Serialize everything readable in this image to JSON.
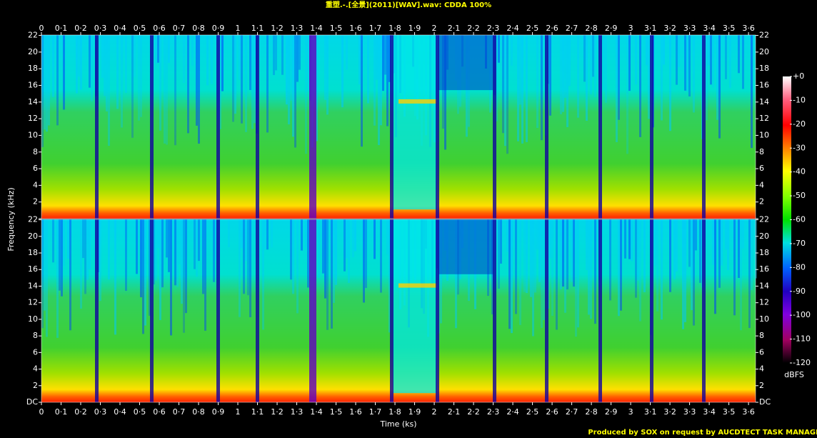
{
  "chart_data": {
    "type": "spectrogram",
    "title": "重塑.-.[全景](2011)[WAV].wav: CDDA 100%",
    "x_label": "Time (ks)",
    "y_label": "Frequency (kHz)",
    "xlim": [
      0,
      3.636
    ],
    "xticks": [
      0,
      {
        "value": 0.1,
        "label": "0·1"
      },
      {
        "value": 0.2,
        "label": "0·2"
      },
      {
        "value": 0.3,
        "label": "0·3"
      },
      {
        "value": 0.4,
        "label": "0·4"
      },
      {
        "value": 0.5,
        "label": "0·5"
      },
      {
        "value": 0.6,
        "label": "0·6"
      },
      {
        "value": 0.7,
        "label": "0·7"
      },
      {
        "value": 0.8,
        "label": "0·8"
      },
      {
        "value": 0.9,
        "label": "0·9"
      },
      1,
      {
        "value": 1.1,
        "label": "1·1"
      },
      {
        "value": 1.2,
        "label": "1·2"
      },
      {
        "value": 1.3,
        "label": "1·3"
      },
      {
        "value": 1.4,
        "label": "1·4"
      },
      {
        "value": 1.5,
        "label": "1·5"
      },
      {
        "value": 1.6,
        "label": "1·6"
      },
      {
        "value": 1.7,
        "label": "1·7"
      },
      {
        "value": 1.8,
        "label": "1·8"
      },
      {
        "value": 1.9,
        "label": "1·9"
      },
      2,
      {
        "value": 2.1,
        "label": "2·1"
      },
      {
        "value": 2.2,
        "label": "2·2"
      },
      {
        "value": 2.3,
        "label": "2·3"
      },
      {
        "value": 2.4,
        "label": "2·4"
      },
      {
        "value": 2.5,
        "label": "2·5"
      },
      {
        "value": 2.6,
        "label": "2·6"
      },
      {
        "value": 2.7,
        "label": "2·7"
      },
      {
        "value": 2.8,
        "label": "2·8"
      },
      {
        "value": 2.9,
        "label": "2·9"
      },
      3,
      {
        "value": 3.1,
        "label": "3·1"
      },
      {
        "value": 3.2,
        "label": "3·2"
      },
      {
        "value": 3.3,
        "label": "3·3"
      },
      {
        "value": 3.4,
        "label": "3·4"
      },
      {
        "value": 3.5,
        "label": "3·5"
      },
      {
        "value": 3.6,
        "label": "3·6"
      }
    ],
    "ylim": [
      0,
      22.05
    ],
    "yticks": [
      {
        "value": 0,
        "label": "DC"
      },
      2,
      4,
      6,
      8,
      10,
      12,
      14,
      16,
      18,
      20,
      22
    ],
    "colorbar_label": "dBFS",
    "clim": [
      -120,
      0
    ],
    "cticks": [
      {
        "value": 0,
        "label": "+0"
      },
      -10,
      -20,
      -30,
      -40,
      -50,
      -60,
      -70,
      -80,
      -90,
      -100,
      -110,
      -120
    ],
    "footer": "Produced by SOX on request by AUCDTECT TASK MANAGER"
  }
}
